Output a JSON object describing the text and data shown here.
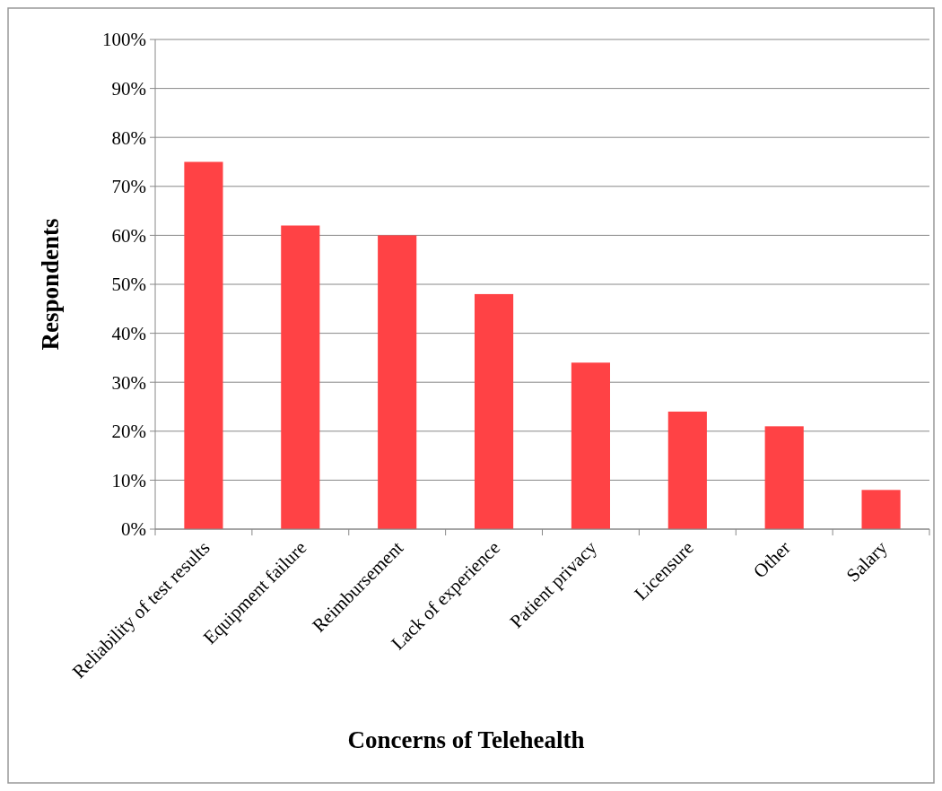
{
  "chart_data": {
    "type": "bar",
    "xlabel": "Concerns of Telehealth",
    "ylabel": "Respondents",
    "categories": [
      "Reliability of test results",
      "Equipment failure",
      "Reimbursement",
      "Lack of experience",
      "Patient privacy",
      "Licensure",
      "Other",
      "Salary"
    ],
    "values": [
      75,
      62,
      60,
      48,
      34,
      24,
      21,
      8
    ],
    "color": "#ff4245",
    "ylim": [
      0,
      100
    ],
    "yticks": [
      {
        "value": 0,
        "label": "0%"
      },
      {
        "value": 10,
        "label": "10%"
      },
      {
        "value": 20,
        "label": "20%"
      },
      {
        "value": 30,
        "label": "30%"
      },
      {
        "value": 40,
        "label": "40%"
      },
      {
        "value": 50,
        "label": "50%"
      },
      {
        "value": 60,
        "label": "60%"
      },
      {
        "value": 70,
        "label": "70%"
      },
      {
        "value": 80,
        "label": "80%"
      },
      {
        "value": 90,
        "label": "90%"
      },
      {
        "value": 100,
        "label": "100%"
      }
    ],
    "grid": "y"
  }
}
